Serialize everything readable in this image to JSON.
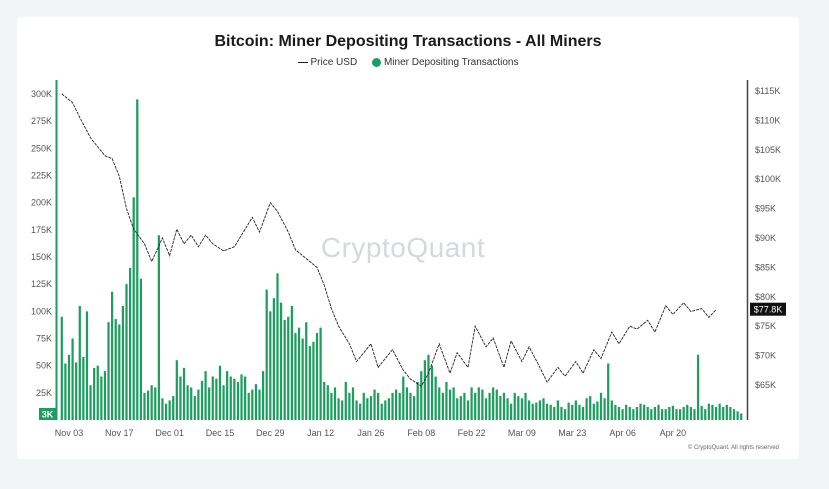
{
  "chart_data": {
    "type": "bar",
    "title": "Bitcoin: Miner Depositing Transactions - All Miners",
    "legend": [
      {
        "label": "Price USD",
        "kind": "line",
        "color": "#222222"
      },
      {
        "label": "Miner Depositing Transactions",
        "kind": "bar",
        "color": "#1b9e5e"
      }
    ],
    "colors": {
      "bar": "#1b9e5e",
      "line": "#222222",
      "axis": "#1b9e5e",
      "current_badge": "#111111"
    },
    "x_tick_labels": [
      "Nov 03",
      "Nov 17",
      "Dec 01",
      "Dec 15",
      "Dec 29",
      "Jan 12",
      "Jan 26",
      "Feb 08",
      "Feb 22",
      "Mar 09",
      "Mar 23",
      "Apr 06",
      "Apr 20"
    ],
    "y_left": {
      "ylim": [
        0,
        300000
      ],
      "ticks": [
        25000,
        50000,
        75000,
        100000,
        125000,
        150000,
        175000,
        200000,
        225000,
        250000,
        275000,
        300000
      ],
      "tick_labels": [
        "25K",
        "50K",
        "75K",
        "100K",
        "125K",
        "150K",
        "175K",
        "200K",
        "225K",
        "250K",
        "275K",
        "300K"
      ],
      "min_badge": "3K"
    },
    "y_right": {
      "ylim": [
        57000,
        117000
      ],
      "ticks": [
        65000,
        70000,
        75000,
        80000,
        85000,
        90000,
        95000,
        100000,
        105000,
        110000,
        115000
      ],
      "tick_labels": [
        "$65K",
        "$70K",
        "$75K",
        "$80K",
        "$85K",
        "$90K",
        "$95K",
        "$100K",
        "$105K",
        "$110K",
        "$115K"
      ],
      "current_label": "$77.8K",
      "current_value": 77800
    },
    "series": [
      {
        "name": "Miner Depositing Transactions",
        "type": "bar",
        "values": [
          95000,
          52000,
          60000,
          75000,
          53000,
          105000,
          58000,
          100000,
          32000,
          48000,
          50000,
          40000,
          45000,
          90000,
          118000,
          93000,
          88000,
          105000,
          125000,
          140000,
          205000,
          295000,
          130000,
          25000,
          27000,
          32000,
          30000,
          170000,
          20000,
          15000,
          18000,
          22000,
          55000,
          40000,
          48000,
          32000,
          30000,
          22000,
          28000,
          36000,
          45000,
          30000,
          40000,
          38000,
          50000,
          32000,
          45000,
          40000,
          38000,
          35000,
          42000,
          40000,
          25000,
          28000,
          33000,
          28000,
          45000,
          120000,
          100000,
          112000,
          135000,
          108000,
          92000,
          95000,
          105000,
          80000,
          85000,
          75000,
          90000,
          68000,
          72000,
          80000,
          85000,
          35000,
          32000,
          25000,
          30000,
          20000,
          18000,
          35000,
          25000,
          30000,
          18000,
          15000,
          25000,
          20000,
          22000,
          28000,
          25000,
          15000,
          18000,
          20000,
          25000,
          28000,
          25000,
          40000,
          30000,
          25000,
          22000,
          35000,
          45000,
          55000,
          60000,
          50000,
          40000,
          30000,
          25000,
          35000,
          28000,
          30000,
          20000,
          22000,
          25000,
          18000,
          30000,
          25000,
          30000,
          28000,
          20000,
          25000,
          30000,
          28000,
          22000,
          25000,
          20000,
          15000,
          25000,
          22000,
          20000,
          25000,
          18000,
          15000,
          16000,
          18000,
          20000,
          15000,
          14000,
          12000,
          18000,
          12000,
          10000,
          16000,
          14000,
          18000,
          14000,
          12000,
          20000,
          22000,
          15000,
          17000,
          25000,
          20000,
          52000,
          18000,
          14000,
          12000,
          10000,
          14000,
          12000,
          10000,
          12000,
          15000,
          14000,
          12000,
          10000,
          12000,
          14000,
          10000,
          10000,
          12000,
          13000,
          10000,
          10000,
          12000,
          14000,
          12000,
          10000,
          60000,
          13000,
          10000,
          15000,
          14000,
          12000,
          15000,
          12000,
          14000,
          12000,
          10000,
          8000,
          6000
        ],
        "note": "Daily values from Nov 01 to Apr 29 estimated from bar heights"
      },
      {
        "name": "Price USD",
        "type": "line",
        "x_index": [
          0,
          3,
          5,
          8,
          12,
          14,
          16,
          18,
          20,
          23,
          25,
          28,
          30,
          32,
          34,
          36,
          38,
          40,
          42,
          45,
          48,
          50,
          53,
          55,
          58,
          60,
          63,
          65,
          68,
          71,
          73,
          75,
          77,
          80,
          82,
          84,
          86,
          88,
          90,
          92,
          95,
          97,
          100,
          102,
          105,
          108,
          110,
          113,
          115,
          118,
          120,
          123,
          125,
          128,
          130,
          133,
          135,
          138,
          140,
          143,
          145,
          148,
          150,
          153,
          155,
          158,
          160,
          163,
          165,
          168,
          170,
          173,
          175,
          178,
          180,
          182
        ],
        "values": [
          114500,
          113000,
          110500,
          107000,
          104000,
          103500,
          100500,
          95000,
          91500,
          89000,
          86000,
          90000,
          87000,
          91500,
          89000,
          90500,
          88500,
          90500,
          89000,
          87800,
          88500,
          90500,
          93500,
          91000,
          96000,
          94500,
          91000,
          88000,
          86500,
          85000,
          82000,
          78000,
          75000,
          72000,
          69000,
          70500,
          72000,
          68000,
          69500,
          71000,
          67500,
          66000,
          64800,
          67000,
          72000,
          67000,
          70500,
          68000,
          75000,
          71500,
          73000,
          68000,
          72500,
          69000,
          71500,
          68000,
          65500,
          68000,
          66500,
          69000,
          67000,
          71000,
          69500,
          74000,
          72000,
          75000,
          74500,
          76000,
          74000,
          78500,
          77000,
          79000,
          77500,
          78000,
          76500,
          77800
        ],
        "note": "Daily close estimated from right axis"
      }
    ]
  },
  "watermark": "CryptoQuant",
  "copyright": "© CryptoQuant. All rights reserved"
}
